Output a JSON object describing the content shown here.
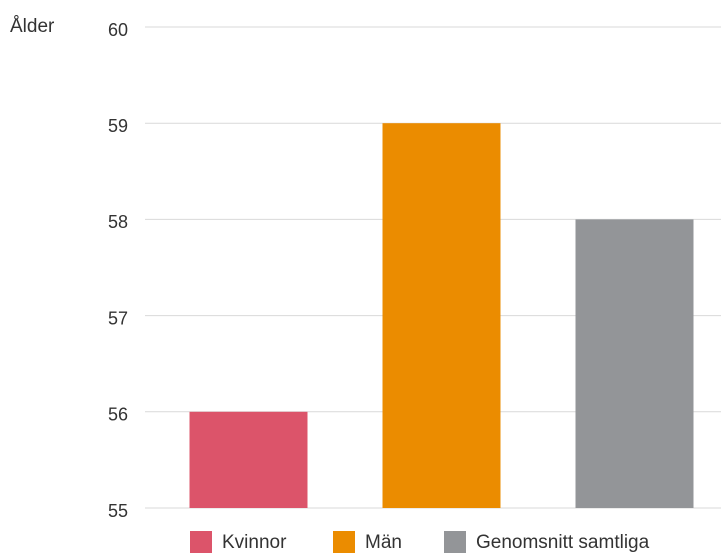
{
  "chart_data": {
    "type": "bar",
    "y_label": "Ålder",
    "categories": [
      "Kvinnor",
      "Män",
      "Genomsnitt samtliga"
    ],
    "values": [
      56,
      59,
      58
    ],
    "colors": [
      "#dc546a",
      "#eb8c00",
      "#939598"
    ],
    "ylim": [
      55,
      60
    ],
    "yticks": [
      55,
      56,
      57,
      58,
      59,
      60
    ],
    "grid": true,
    "legend": "bottom"
  }
}
